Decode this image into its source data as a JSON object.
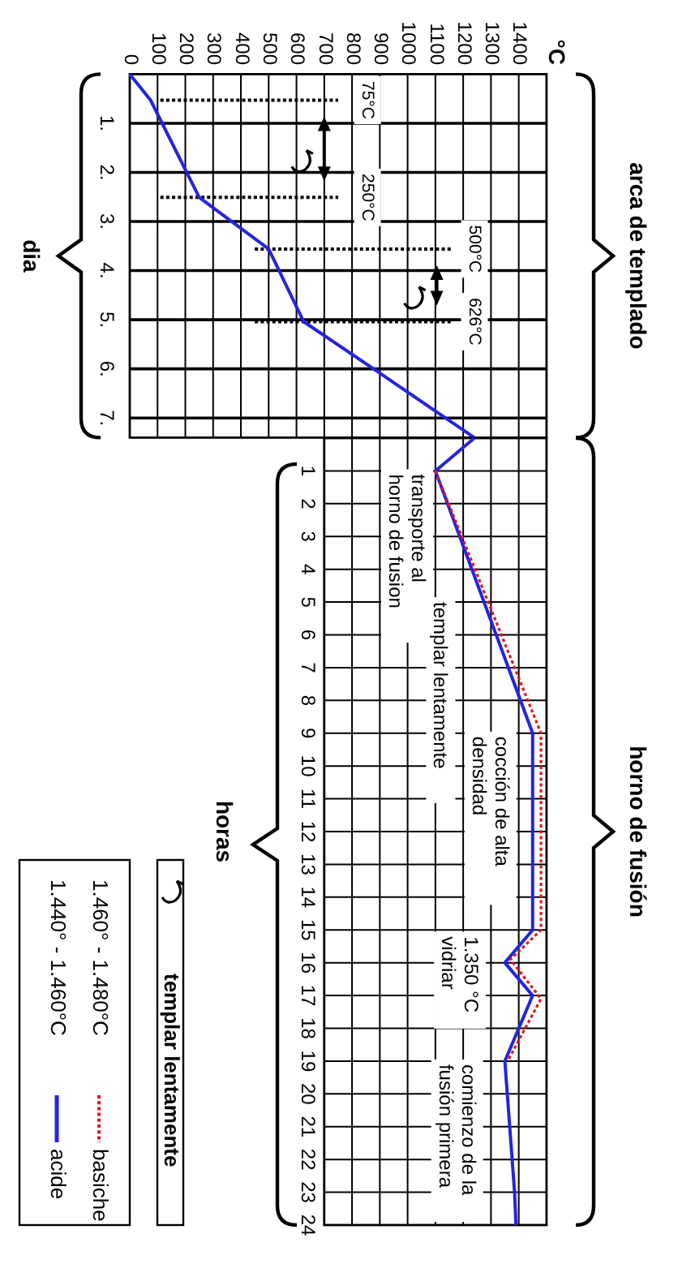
{
  "chart_data": [
    {
      "type": "line",
      "ylabel": "dia",
      "series": [
        {
          "color": "#2424e0",
          "line_style": "solid",
          "x": [
            0,
            75,
            250,
            500,
            626,
            885,
            1240
          ],
          "values": [
            0,
            0.53,
            2.51,
            3.56,
            5.04,
            6.03,
            7.4
          ]
        }
      ],
      "xlim": [
        0,
        1500
      ],
      "xticks": [
        0,
        100,
        200,
        300,
        400,
        500,
        600,
        700,
        800,
        900,
        1000,
        1100,
        1200,
        1300,
        1400
      ],
      "ylim": [
        7.4,
        0
      ],
      "yticks": [
        {
          "value": 1,
          "label": "1."
        },
        {
          "value": 2,
          "label": "2."
        },
        {
          "value": 3,
          "label": "3."
        },
        {
          "value": 4,
          "label": "4."
        },
        {
          "value": 5,
          "label": "5."
        },
        {
          "value": 6,
          "label": "6."
        },
        {
          "value": 7,
          "label": "7."
        }
      ],
      "grid": true,
      "ref_lines": [
        {
          "axis": "y",
          "value": 0.53,
          "label": "75°C",
          "line_style": "dotted"
        },
        {
          "axis": "y",
          "value": 2.51,
          "label": "250°C",
          "line_style": "dotted"
        },
        {
          "axis": "y",
          "value": 3.56,
          "label": "500°C",
          "line_style": "dotted"
        },
        {
          "axis": "y",
          "value": 5.04,
          "label": "626°C",
          "line_style": "dotted"
        }
      ],
      "annotations": [
        "arca de templado",
        "°C"
      ]
    },
    {
      "type": "line",
      "ylabel": "horas",
      "ylim": [
        24,
        0
      ],
      "yticks": [
        1,
        2,
        3,
        4,
        5,
        6,
        7,
        8,
        9,
        10,
        11,
        12,
        13,
        14,
        15,
        16,
        17,
        18,
        19,
        20,
        21,
        22,
        23,
        24
      ],
      "xlim": [
        700,
        1500
      ],
      "xticks": [
        700,
        800,
        900,
        1000,
        1100,
        1200,
        1300,
        1400
      ],
      "tick_labels": "y",
      "grid": true,
      "legend": "left",
      "series": [
        {
          "name": "basiche",
          "color": "#e01818",
          "line_style": "dotted",
          "x": [
            1100,
            1480,
            1480,
            1370,
            1480,
            1360
          ],
          "values": [
            1,
            9,
            15,
            15.9,
            17.1,
            19
          ]
        },
        {
          "name": "acide",
          "color": "#2424e0",
          "line_style": "solid",
          "x": [
            1240,
            1100,
            1450,
            1450,
            1350,
            1450,
            1350,
            1385,
            1390
          ],
          "values": [
            0,
            1,
            9,
            15,
            16,
            17,
            19,
            23,
            24
          ]
        }
      ],
      "annotations": [
        "horno de fusión",
        "transporte al\nhorno de fusion",
        "templar lentamente",
        "cocción de alta\ndensidad",
        "1.350 °C\nvidriar",
        "comienzo de la\nfusión primera",
        "templar lentamente",
        "1.460° - 1.480°C",
        "1.440° - 1.460°C"
      ]
    }
  ]
}
